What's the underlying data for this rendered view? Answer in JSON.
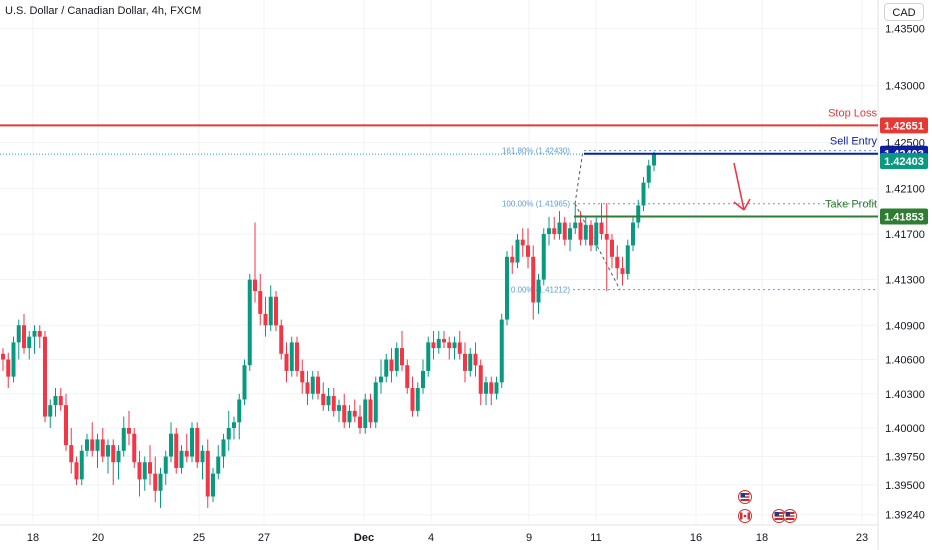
{
  "header": {
    "title": "U.S. Dollar / Canadian Dollar, 4h, FXCM",
    "currency": "CAD"
  },
  "colors": {
    "up": "#089981",
    "down": "#f23645",
    "stop": "#e53935",
    "entry": "#0d1ea8",
    "profit": "#2e7d32",
    "fib": "#5b9bd5",
    "grid": "#f0f3fa",
    "axis_text": "#131722"
  },
  "chart_data": {
    "type": "candlestick",
    "symbol": "USDCAD",
    "interval": "4h",
    "ylim": [
      1.3915,
      1.4375
    ],
    "y_ticks": [
      "1.43500",
      "1.43000",
      "1.42500",
      "1.42100",
      "1.41700",
      "1.41300",
      "1.40900",
      "1.40600",
      "1.40300",
      "1.40000",
      "1.39750",
      "1.39500",
      "1.39240"
    ],
    "x_ticks": [
      "18",
      "20",
      "25",
      "27",
      "Dec",
      "4",
      "9",
      "11",
      "16",
      "18",
      "23"
    ],
    "levels": [
      {
        "name": "Stop Loss",
        "value": 1.42651,
        "label": "1.42651",
        "color": "#e53935"
      },
      {
        "name": "Sell Entry",
        "value": 1.42403,
        "label": "1.42403",
        "color": "#0d1ea8"
      },
      {
        "name": "Take Profit",
        "value": 1.41853,
        "label": "1.41853",
        "color": "#2e7d32"
      }
    ],
    "fib_levels": [
      {
        "label": "161.80% (1.42430)",
        "value": 1.4243
      },
      {
        "label": "100.00% (1.41965)",
        "value": 1.41965
      },
      {
        "label": "0.00% (1.41212)",
        "value": 1.41212
      }
    ],
    "last_price": "1.42403",
    "candles": [
      [
        1.4065,
        1.407,
        1.405,
        1.406
      ],
      [
        1.406,
        1.4066,
        1.4035,
        1.4045
      ],
      [
        1.4045,
        1.408,
        1.404,
        1.4075
      ],
      [
        1.4075,
        1.4095,
        1.406,
        1.409
      ],
      [
        1.409,
        1.41,
        1.4065,
        1.407
      ],
      [
        1.407,
        1.4085,
        1.406,
        1.408
      ],
      [
        1.408,
        1.409,
        1.4065,
        1.4085
      ],
      [
        1.4085,
        1.409,
        1.407,
        1.408
      ],
      [
        1.408,
        1.4085,
        1.4005,
        1.401
      ],
      [
        1.401,
        1.4025,
        1.4,
        1.402
      ],
      [
        1.402,
        1.4035,
        1.401,
        1.4028
      ],
      [
        1.4028,
        1.4035,
        1.4015,
        1.402
      ],
      [
        1.402,
        1.403,
        1.398,
        1.3985
      ],
      [
        1.3985,
        1.4,
        1.396,
        1.397
      ],
      [
        1.397,
        1.3975,
        1.395,
        1.3955
      ],
      [
        1.3955,
        1.3985,
        1.395,
        1.398
      ],
      [
        1.398,
        1.3995,
        1.3975,
        1.399
      ],
      [
        1.399,
        1.4005,
        1.3975,
        1.398
      ],
      [
        1.398,
        1.3995,
        1.3965,
        1.399
      ],
      [
        1.399,
        1.4,
        1.397,
        1.3975
      ],
      [
        1.3975,
        1.399,
        1.396,
        1.3985
      ],
      [
        1.3985,
        1.399,
        1.395,
        1.397
      ],
      [
        1.397,
        1.3985,
        1.3955,
        1.398
      ],
      [
        1.398,
        1.401,
        1.3975,
        1.4
      ],
      [
        1.4,
        1.4015,
        1.3985,
        1.3995
      ],
      [
        1.3995,
        1.4,
        1.3965,
        1.397
      ],
      [
        1.397,
        1.398,
        1.394,
        1.3955
      ],
      [
        1.3955,
        1.3975,
        1.3945,
        1.397
      ],
      [
        1.397,
        1.3985,
        1.395,
        1.396
      ],
      [
        1.396,
        1.3975,
        1.3935,
        1.3945
      ],
      [
        1.3945,
        1.3965,
        1.393,
        1.396
      ],
      [
        1.396,
        1.398,
        1.395,
        1.3975
      ],
      [
        1.3975,
        1.4005,
        1.397,
        1.3995
      ],
      [
        1.3995,
        1.4,
        1.396,
        1.3965
      ],
      [
        1.3965,
        1.3985,
        1.396,
        1.398
      ],
      [
        1.398,
        1.3995,
        1.397,
        1.3975
      ],
      [
        1.3975,
        1.4005,
        1.397,
        1.4
      ],
      [
        1.4,
        1.4005,
        1.3965,
        1.397
      ],
      [
        1.397,
        1.3985,
        1.3955,
        1.398
      ],
      [
        1.398,
        1.399,
        1.393,
        1.394
      ],
      [
        1.394,
        1.3965,
        1.3935,
        1.396
      ],
      [
        1.396,
        1.3985,
        1.3955,
        1.3975
      ],
      [
        1.3975,
        1.3995,
        1.3965,
        1.399
      ],
      [
        1.399,
        1.4015,
        1.398,
        1.4
      ],
      [
        1.4,
        1.401,
        1.399,
        1.4005
      ],
      [
        1.4005,
        1.403,
        1.399,
        1.4025
      ],
      [
        1.4025,
        1.406,
        1.402,
        1.4055
      ],
      [
        1.4055,
        1.4135,
        1.405,
        1.413
      ],
      [
        1.413,
        1.418,
        1.411,
        1.412
      ],
      [
        1.412,
        1.4135,
        1.409,
        1.41
      ],
      [
        1.41,
        1.4115,
        1.408,
        1.409
      ],
      [
        1.409,
        1.4125,
        1.4085,
        1.4115
      ],
      [
        1.4115,
        1.412,
        1.4085,
        1.409
      ],
      [
        1.409,
        1.4095,
        1.406,
        1.4065
      ],
      [
        1.4065,
        1.4075,
        1.404,
        1.405
      ],
      [
        1.405,
        1.408,
        1.4045,
        1.4075
      ],
      [
        1.4075,
        1.408,
        1.4045,
        1.405
      ],
      [
        1.405,
        1.406,
        1.403,
        1.404
      ],
      [
        1.404,
        1.405,
        1.402,
        1.403
      ],
      [
        1.403,
        1.405,
        1.4025,
        1.4045
      ],
      [
        1.4045,
        1.405,
        1.4025,
        1.403
      ],
      [
        1.403,
        1.404,
        1.4015,
        1.402
      ],
      [
        1.402,
        1.4035,
        1.4015,
        1.4028
      ],
      [
        1.4028,
        1.4035,
        1.401,
        1.4015
      ],
      [
        1.4015,
        1.4025,
        1.4005,
        1.402
      ],
      [
        1.402,
        1.403,
        1.4,
        1.4005
      ],
      [
        1.4005,
        1.402,
        1.4,
        1.4015
      ],
      [
        1.4015,
        1.4025,
        1.4005,
        1.401
      ],
      [
        1.401,
        1.402,
        1.3995,
        1.4
      ],
      [
        1.4,
        1.403,
        1.3995,
        1.4025
      ],
      [
        1.4025,
        1.403,
        1.4,
        1.4005
      ],
      [
        1.4005,
        1.4045,
        1.4,
        1.404
      ],
      [
        1.404,
        1.406,
        1.403,
        1.4045
      ],
      [
        1.4045,
        1.4065,
        1.404,
        1.406
      ],
      [
        1.406,
        1.407,
        1.404,
        1.405
      ],
      [
        1.405,
        1.4075,
        1.4045,
        1.407
      ],
      [
        1.407,
        1.4085,
        1.405,
        1.4055
      ],
      [
        1.4055,
        1.406,
        1.403,
        1.4035
      ],
      [
        1.4035,
        1.4045,
        1.401,
        1.4015
      ],
      [
        1.4015,
        1.404,
        1.401,
        1.4035
      ],
      [
        1.4035,
        1.406,
        1.403,
        1.405
      ],
      [
        1.405,
        1.408,
        1.4045,
        1.4075
      ],
      [
        1.4075,
        1.4085,
        1.406,
        1.407
      ],
      [
        1.407,
        1.4085,
        1.4065,
        1.4078
      ],
      [
        1.4078,
        1.4085,
        1.407,
        1.4075
      ],
      [
        1.4075,
        1.408,
        1.406,
        1.407
      ],
      [
        1.407,
        1.408,
        1.406,
        1.4075
      ],
      [
        1.4075,
        1.4085,
        1.406,
        1.4065
      ],
      [
        1.4065,
        1.4075,
        1.404,
        1.405
      ],
      [
        1.405,
        1.407,
        1.4045,
        1.4065
      ],
      [
        1.4065,
        1.4075,
        1.4045,
        1.4055
      ],
      [
        1.4055,
        1.406,
        1.402,
        1.403
      ],
      [
        1.403,
        1.4045,
        1.402,
        1.404
      ],
      [
        1.404,
        1.4045,
        1.402,
        1.403
      ],
      [
        1.403,
        1.4045,
        1.4025,
        1.404
      ],
      [
        1.404,
        1.41,
        1.4035,
        1.4095
      ],
      [
        1.4095,
        1.4155,
        1.409,
        1.415
      ],
      [
        1.415,
        1.416,
        1.4135,
        1.4145
      ],
      [
        1.4145,
        1.417,
        1.414,
        1.4165
      ],
      [
        1.4165,
        1.4175,
        1.415,
        1.416
      ],
      [
        1.416,
        1.4175,
        1.414,
        1.415
      ],
      [
        1.415,
        1.416,
        1.4095,
        1.411
      ],
      [
        1.411,
        1.4135,
        1.41,
        1.413
      ],
      [
        1.413,
        1.4175,
        1.4125,
        1.417
      ],
      [
        1.417,
        1.4185,
        1.416,
        1.4175
      ],
      [
        1.4175,
        1.4185,
        1.4165,
        1.417
      ],
      [
        1.417,
        1.419,
        1.4165,
        1.418
      ],
      [
        1.418,
        1.4185,
        1.416,
        1.4165
      ],
      [
        1.4165,
        1.418,
        1.4155,
        1.4175
      ],
      [
        1.4175,
        1.4195,
        1.417,
        1.418
      ],
      [
        1.418,
        1.419,
        1.416,
        1.4165
      ],
      [
        1.4165,
        1.4185,
        1.416,
        1.4178
      ],
      [
        1.4178,
        1.4182,
        1.4155,
        1.416
      ],
      [
        1.416,
        1.4185,
        1.4155,
        1.418
      ],
      [
        1.418,
        1.4197,
        1.4165,
        1.417
      ],
      [
        1.417,
        1.4197,
        1.412,
        1.4165
      ],
      [
        1.4165,
        1.417,
        1.414,
        1.415
      ],
      [
        1.415,
        1.416,
        1.413,
        1.414
      ],
      [
        1.414,
        1.415,
        1.4125,
        1.4135
      ],
      [
        1.4135,
        1.4165,
        1.413,
        1.416
      ],
      [
        1.416,
        1.4185,
        1.4155,
        1.418
      ],
      [
        1.418,
        1.42,
        1.4175,
        1.4195
      ],
      [
        1.4195,
        1.422,
        1.419,
        1.4215
      ],
      [
        1.4215,
        1.4235,
        1.421,
        1.423
      ],
      [
        1.423,
        1.4242,
        1.4225,
        1.424
      ]
    ]
  },
  "calendar_events": [
    {
      "icon": "us-flag-icon",
      "label": "USD"
    },
    {
      "icon": "ca-flag-icon",
      "label": "CAD"
    },
    {
      "icon": "us-flag-icon",
      "label": "USD"
    },
    {
      "icon": "us-flag-icon",
      "label": "USD"
    }
  ]
}
